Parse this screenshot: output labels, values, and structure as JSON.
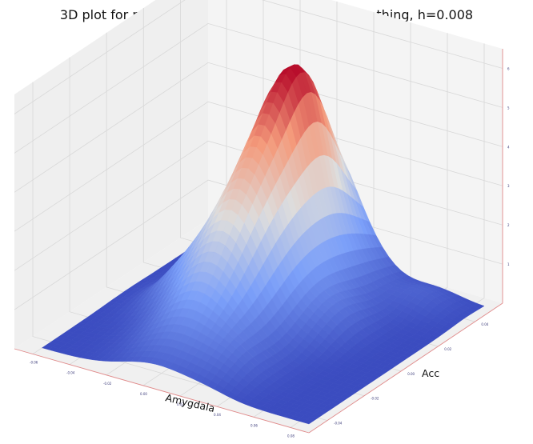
{
  "chart_data": {
    "type": "surface",
    "title": "3D plot for multi dimentianl histogram with smoothing, h=0.008",
    "xlabel": "Amygdala",
    "ylabel": "Acc",
    "zlabel": "",
    "colormap": "coolwarm",
    "colors": {
      "low": "#3b4cc0",
      "mid": "#dddddd",
      "high": "#b40426",
      "pane": "#f4f4f4",
      "grid": "#d8d8d8",
      "axis": "#e08a8a"
    },
    "xlim": [
      -0.07,
      0.09
    ],
    "ylim": [
      -0.05,
      0.055
    ],
    "zlim": [
      0,
      6.5
    ],
    "x_ticks": [
      "-0.06",
      "-0.04",
      "-0.02",
      "0.00",
      "0.02",
      "0.04",
      "0.06",
      "0.08"
    ],
    "y_ticks": [
      "-0.04",
      "-0.02",
      "0.00",
      "0.02",
      "0.04"
    ],
    "z_ticks": [
      "1",
      "2",
      "3",
      "4",
      "5",
      "6"
    ],
    "grid": true,
    "surface_components": [
      {
        "x0": 0.002,
        "y0": 0.02,
        "sx": 0.018,
        "sy": 0.03,
        "amp": 4.2
      },
      {
        "x0": -0.003,
        "y0": 0.03,
        "sx": 0.01,
        "sy": 0.012,
        "amp": 1.4
      },
      {
        "x0": 0.008,
        "y0": 0.034,
        "sx": 0.007,
        "sy": 0.009,
        "amp": 0.8
      },
      {
        "x0": -0.03,
        "y0": 0.0,
        "sx": 0.012,
        "sy": 0.01,
        "amp": 0.6
      },
      {
        "x0": 0.045,
        "y0": 0.01,
        "sx": 0.01,
        "sy": 0.012,
        "amp": 0.5
      },
      {
        "x0": 0.03,
        "y0": -0.03,
        "sx": 0.012,
        "sy": 0.01,
        "amp": 0.35
      },
      {
        "x0": 0.06,
        "y0": 0.04,
        "sx": 0.012,
        "sy": 0.008,
        "amp": 0.35
      }
    ]
  }
}
